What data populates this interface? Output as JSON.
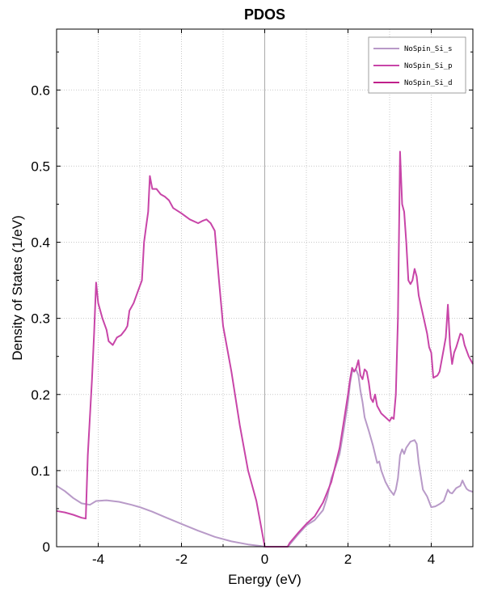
{
  "chart_data": {
    "type": "line",
    "title": "PDOS",
    "xlabel": "Energy (eV)",
    "ylabel": "Density of States (1/eV)",
    "xlim": [
      -5,
      5
    ],
    "ylim": [
      0,
      0.68
    ],
    "xticks": [
      -4,
      -2,
      0,
      2,
      4
    ],
    "xtick_labels": [
      "-4",
      "-2",
      "0",
      "2",
      "4"
    ],
    "yticks": [
      0,
      0.1,
      0.2,
      0.3,
      0.4,
      0.5,
      0.6
    ],
    "ytick_labels": [
      "0",
      "0.1",
      "0.2",
      "0.3",
      "0.4",
      "0.5",
      "0.6"
    ],
    "grid": true,
    "vline_x": 0,
    "legend_position": "top-right",
    "series": [
      {
        "name": "NoSpin_Si_s",
        "color": "#b89ac8",
        "points": [
          [
            -5,
            0.08
          ],
          [
            -4.8,
            0.073
          ],
          [
            -4.6,
            0.064
          ],
          [
            -4.4,
            0.057
          ],
          [
            -4.2,
            0.055
          ],
          [
            -4.05,
            0.06
          ],
          [
            -3.8,
            0.061
          ],
          [
            -3.5,
            0.059
          ],
          [
            -3.2,
            0.055
          ],
          [
            -3.0,
            0.052
          ],
          [
            -2.7,
            0.046
          ],
          [
            -2.4,
            0.039
          ],
          [
            -2.0,
            0.03
          ],
          [
            -1.6,
            0.021
          ],
          [
            -1.2,
            0.013
          ],
          [
            -0.8,
            0.007
          ],
          [
            -0.4,
            0.003
          ],
          [
            -0.1,
            0.001
          ],
          [
            0.0,
            0.0
          ],
          [
            0.55,
            0.0
          ],
          [
            0.6,
            0.003
          ],
          [
            0.8,
            0.016
          ],
          [
            1.0,
            0.028
          ],
          [
            1.2,
            0.035
          ],
          [
            1.4,
            0.048
          ],
          [
            1.5,
            0.065
          ],
          [
            1.6,
            0.09
          ],
          [
            1.7,
            0.105
          ],
          [
            1.8,
            0.122
          ],
          [
            1.9,
            0.155
          ],
          [
            2.0,
            0.19
          ],
          [
            2.05,
            0.215
          ],
          [
            2.1,
            0.23
          ],
          [
            2.2,
            0.232
          ],
          [
            2.25,
            0.225
          ],
          [
            2.3,
            0.205
          ],
          [
            2.35,
            0.19
          ],
          [
            2.4,
            0.17
          ],
          [
            2.5,
            0.152
          ],
          [
            2.6,
            0.133
          ],
          [
            2.7,
            0.11
          ],
          [
            2.75,
            0.112
          ],
          [
            2.8,
            0.1
          ],
          [
            2.9,
            0.085
          ],
          [
            3.0,
            0.075
          ],
          [
            3.1,
            0.068
          ],
          [
            3.15,
            0.075
          ],
          [
            3.2,
            0.09
          ],
          [
            3.25,
            0.12
          ],
          [
            3.3,
            0.128
          ],
          [
            3.35,
            0.122
          ],
          [
            3.4,
            0.13
          ],
          [
            3.5,
            0.138
          ],
          [
            3.6,
            0.14
          ],
          [
            3.65,
            0.135
          ],
          [
            3.7,
            0.11
          ],
          [
            3.8,
            0.075
          ],
          [
            3.9,
            0.066
          ],
          [
            4.0,
            0.052
          ],
          [
            4.1,
            0.053
          ],
          [
            4.2,
            0.056
          ],
          [
            4.3,
            0.06
          ],
          [
            4.4,
            0.075
          ],
          [
            4.45,
            0.071
          ],
          [
            4.5,
            0.07
          ],
          [
            4.6,
            0.077
          ],
          [
            4.7,
            0.08
          ],
          [
            4.75,
            0.087
          ],
          [
            4.8,
            0.081
          ],
          [
            4.85,
            0.076
          ],
          [
            4.9,
            0.074
          ],
          [
            5.0,
            0.072
          ]
        ]
      },
      {
        "name": "NoSpin_Si_p",
        "color": "#c845a8",
        "points": [
          [
            -5,
            0.047
          ],
          [
            -4.8,
            0.045
          ],
          [
            -4.6,
            0.042
          ],
          [
            -4.4,
            0.038
          ],
          [
            -4.3,
            0.037
          ],
          [
            -4.25,
            0.12
          ],
          [
            -4.15,
            0.22
          ],
          [
            -4.1,
            0.28
          ],
          [
            -4.05,
            0.347
          ],
          [
            -4.0,
            0.32
          ],
          [
            -3.9,
            0.3
          ],
          [
            -3.8,
            0.285
          ],
          [
            -3.75,
            0.27
          ],
          [
            -3.65,
            0.265
          ],
          [
            -3.55,
            0.275
          ],
          [
            -3.45,
            0.278
          ],
          [
            -3.35,
            0.285
          ],
          [
            -3.3,
            0.29
          ],
          [
            -3.25,
            0.31
          ],
          [
            -3.15,
            0.32
          ],
          [
            -3.05,
            0.335
          ],
          [
            -2.95,
            0.35
          ],
          [
            -2.9,
            0.4
          ],
          [
            -2.85,
            0.42
          ],
          [
            -2.8,
            0.44
          ],
          [
            -2.76,
            0.487
          ],
          [
            -2.7,
            0.47
          ],
          [
            -2.6,
            0.47
          ],
          [
            -2.5,
            0.463
          ],
          [
            -2.4,
            0.46
          ],
          [
            -2.3,
            0.455
          ],
          [
            -2.2,
            0.445
          ],
          [
            -2.0,
            0.438
          ],
          [
            -1.8,
            0.43
          ],
          [
            -1.6,
            0.425
          ],
          [
            -1.5,
            0.428
          ],
          [
            -1.4,
            0.43
          ],
          [
            -1.3,
            0.425
          ],
          [
            -1.2,
            0.415
          ],
          [
            -1.1,
            0.35
          ],
          [
            -1.0,
            0.29
          ],
          [
            -0.8,
            0.23
          ],
          [
            -0.6,
            0.16
          ],
          [
            -0.4,
            0.1
          ],
          [
            -0.2,
            0.06
          ],
          [
            -0.1,
            0.03
          ],
          [
            0.0,
            0.0
          ],
          [
            0.55,
            0.0
          ],
          [
            0.6,
            0.005
          ],
          [
            0.8,
            0.018
          ],
          [
            1.0,
            0.03
          ],
          [
            1.2,
            0.04
          ],
          [
            1.4,
            0.058
          ],
          [
            1.6,
            0.085
          ],
          [
            1.8,
            0.13
          ],
          [
            1.9,
            0.165
          ],
          [
            2.0,
            0.2
          ],
          [
            2.05,
            0.22
          ],
          [
            2.1,
            0.235
          ],
          [
            2.15,
            0.23
          ],
          [
            2.2,
            0.235
          ],
          [
            2.25,
            0.245
          ],
          [
            2.3,
            0.225
          ],
          [
            2.35,
            0.22
          ],
          [
            2.4,
            0.233
          ],
          [
            2.45,
            0.23
          ],
          [
            2.5,
            0.215
          ],
          [
            2.55,
            0.195
          ],
          [
            2.6,
            0.19
          ],
          [
            2.65,
            0.2
          ],
          [
            2.7,
            0.185
          ],
          [
            2.8,
            0.175
          ],
          [
            2.9,
            0.17
          ],
          [
            3.0,
            0.165
          ],
          [
            3.05,
            0.17
          ],
          [
            3.1,
            0.168
          ],
          [
            3.15,
            0.2
          ],
          [
            3.2,
            0.3
          ],
          [
            3.25,
            0.519
          ],
          [
            3.3,
            0.45
          ],
          [
            3.35,
            0.44
          ],
          [
            3.4,
            0.4
          ],
          [
            3.45,
            0.35
          ],
          [
            3.5,
            0.345
          ],
          [
            3.55,
            0.35
          ],
          [
            3.6,
            0.365
          ],
          [
            3.65,
            0.355
          ],
          [
            3.7,
            0.33
          ],
          [
            3.8,
            0.305
          ],
          [
            3.9,
            0.28
          ],
          [
            3.95,
            0.262
          ],
          [
            4.0,
            0.255
          ],
          [
            4.05,
            0.222
          ],
          [
            4.15,
            0.225
          ],
          [
            4.2,
            0.23
          ],
          [
            4.25,
            0.245
          ],
          [
            4.3,
            0.26
          ],
          [
            4.35,
            0.275
          ],
          [
            4.4,
            0.318
          ],
          [
            4.45,
            0.265
          ],
          [
            4.5,
            0.24
          ],
          [
            4.55,
            0.255
          ],
          [
            4.6,
            0.262
          ],
          [
            4.7,
            0.28
          ],
          [
            4.75,
            0.278
          ],
          [
            4.8,
            0.265
          ],
          [
            4.9,
            0.25
          ],
          [
            5.0,
            0.24
          ]
        ]
      },
      {
        "name": "NoSpin_Si_d",
        "color": "#c0208a",
        "points": []
      }
    ]
  }
}
